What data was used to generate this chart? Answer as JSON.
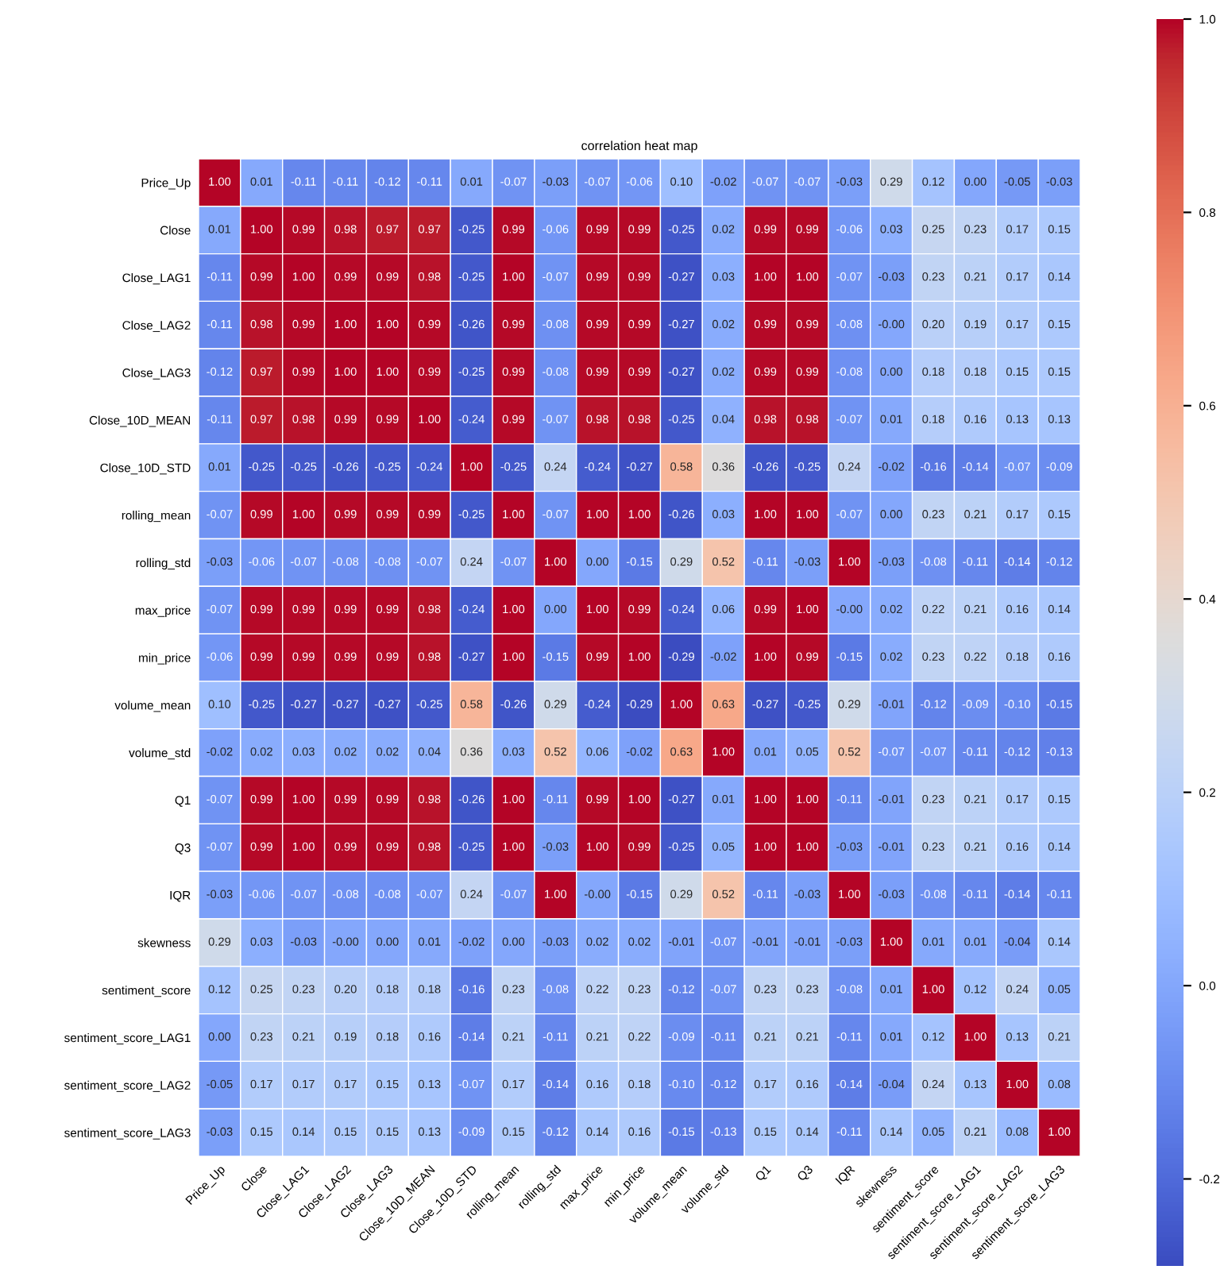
{
  "chart_data": {
    "type": "heatmap",
    "title": "correlation heat map",
    "categories": [
      "Price_Up",
      "Close",
      "Close_LAG1",
      "Close_LAG2",
      "Close_LAG3",
      "Close_10D_MEAN",
      "Close_10D_STD",
      "rolling_mean",
      "rolling_std",
      "max_price",
      "min_price",
      "volume_mean",
      "volume_std",
      "Q1",
      "Q3",
      "IQR",
      "skewness",
      "sentiment_score",
      "sentiment_score_LAG1",
      "sentiment_score_LAG2",
      "sentiment_score_LAG3"
    ],
    "y_categories": [
      "Price_Up",
      "Close",
      "Close_LAG1",
      "Close_LAG2",
      "Close_LAG3",
      "Close_10D_MEAN",
      "Close_10D_STD",
      "rolling_mean",
      "rolling_std",
      "max_price",
      "min_price",
      "volume_mean",
      "volume_std",
      "Q1",
      "Q3",
      "IQR",
      "skewness",
      "sentiment_score",
      "sentiment_score_LAG1",
      "sentiment_score_LAG2",
      "sentiment_score_LAG3"
    ],
    "cells": [
      [
        1.0,
        0.01,
        -0.11,
        -0.11,
        -0.12,
        -0.11,
        0.01,
        -0.07,
        -0.03,
        -0.07,
        -0.06,
        0.1,
        -0.02,
        -0.07,
        -0.07,
        -0.03,
        0.29,
        0.12,
        0.0,
        -0.05,
        -0.03
      ],
      [
        0.01,
        1.0,
        0.99,
        0.98,
        0.97,
        0.97,
        -0.25,
        0.99,
        -0.06,
        0.99,
        0.99,
        -0.25,
        0.02,
        0.99,
        0.99,
        -0.06,
        0.03,
        0.25,
        0.23,
        0.17,
        0.15
      ],
      [
        -0.11,
        0.99,
        1.0,
        0.99,
        0.99,
        0.98,
        -0.25,
        1.0,
        -0.07,
        0.99,
        0.99,
        -0.27,
        0.03,
        1.0,
        1.0,
        -0.07,
        -0.03,
        0.23,
        0.21,
        0.17,
        0.14
      ],
      [
        -0.11,
        0.98,
        0.99,
        1.0,
        1.0,
        0.99,
        -0.26,
        0.99,
        -0.08,
        0.99,
        0.99,
        -0.27,
        0.02,
        0.99,
        0.99,
        -0.08,
        -0.0,
        0.2,
        0.19,
        0.17,
        0.15
      ],
      [
        -0.12,
        0.97,
        0.99,
        1.0,
        1.0,
        0.99,
        -0.25,
        0.99,
        -0.08,
        0.99,
        0.99,
        -0.27,
        0.02,
        0.99,
        0.99,
        -0.08,
        0.0,
        0.18,
        0.18,
        0.15,
        0.15
      ],
      [
        -0.11,
        0.97,
        0.98,
        0.99,
        0.99,
        1.0,
        -0.24,
        0.99,
        -0.07,
        0.98,
        0.98,
        -0.25,
        0.04,
        0.98,
        0.98,
        -0.07,
        0.01,
        0.18,
        0.16,
        0.13,
        0.13
      ],
      [
        0.01,
        -0.25,
        -0.25,
        -0.26,
        -0.25,
        -0.24,
        1.0,
        -0.25,
        0.24,
        -0.24,
        -0.27,
        0.58,
        0.36,
        -0.26,
        -0.25,
        0.24,
        -0.02,
        -0.16,
        -0.14,
        -0.07,
        -0.09
      ],
      [
        -0.07,
        0.99,
        1.0,
        0.99,
        0.99,
        0.99,
        -0.25,
        1.0,
        -0.07,
        1.0,
        1.0,
        -0.26,
        0.03,
        1.0,
        1.0,
        -0.07,
        0.0,
        0.23,
        0.21,
        0.17,
        0.15
      ],
      [
        -0.03,
        -0.06,
        -0.07,
        -0.08,
        -0.08,
        -0.07,
        0.24,
        -0.07,
        1.0,
        0.0,
        -0.15,
        0.29,
        0.52,
        -0.11,
        -0.03,
        1.0,
        -0.03,
        -0.08,
        -0.11,
        -0.14,
        -0.12
      ],
      [
        -0.07,
        0.99,
        0.99,
        0.99,
        0.99,
        0.98,
        -0.24,
        1.0,
        0.0,
        1.0,
        0.99,
        -0.24,
        0.06,
        0.99,
        1.0,
        -0.0,
        0.02,
        0.22,
        0.21,
        0.16,
        0.14
      ],
      [
        -0.06,
        0.99,
        0.99,
        0.99,
        0.99,
        0.98,
        -0.27,
        1.0,
        -0.15,
        0.99,
        1.0,
        -0.29,
        -0.02,
        1.0,
        0.99,
        -0.15,
        0.02,
        0.23,
        0.22,
        0.18,
        0.16
      ],
      [
        0.1,
        -0.25,
        -0.27,
        -0.27,
        -0.27,
        -0.25,
        0.58,
        -0.26,
        0.29,
        -0.24,
        -0.29,
        1.0,
        0.63,
        -0.27,
        -0.25,
        0.29,
        -0.01,
        -0.12,
        -0.09,
        -0.1,
        -0.15
      ],
      [
        -0.02,
        0.02,
        0.03,
        0.02,
        0.02,
        0.04,
        0.36,
        0.03,
        0.52,
        0.06,
        -0.02,
        0.63,
        1.0,
        0.01,
        0.05,
        0.52,
        -0.07,
        -0.07,
        -0.11,
        -0.12,
        -0.13
      ],
      [
        -0.07,
        0.99,
        1.0,
        0.99,
        0.99,
        0.98,
        -0.26,
        1.0,
        -0.11,
        0.99,
        1.0,
        -0.27,
        0.01,
        1.0,
        1.0,
        -0.11,
        -0.01,
        0.23,
        0.21,
        0.17,
        0.15
      ],
      [
        -0.07,
        0.99,
        1.0,
        0.99,
        0.99,
        0.98,
        -0.25,
        1.0,
        -0.03,
        1.0,
        0.99,
        -0.25,
        0.05,
        1.0,
        1.0,
        -0.03,
        -0.01,
        0.23,
        0.21,
        0.16,
        0.14
      ],
      [
        -0.03,
        -0.06,
        -0.07,
        -0.08,
        -0.08,
        -0.07,
        0.24,
        -0.07,
        1.0,
        -0.0,
        -0.15,
        0.29,
        0.52,
        -0.11,
        -0.03,
        1.0,
        -0.03,
        -0.08,
        -0.11,
        -0.14,
        -0.11
      ],
      [
        0.29,
        0.03,
        -0.03,
        -0.0,
        0.0,
        0.01,
        -0.02,
        0.0,
        -0.03,
        0.02,
        0.02,
        -0.01,
        -0.07,
        -0.01,
        -0.01,
        -0.03,
        1.0,
        0.01,
        0.01,
        -0.04,
        0.14
      ],
      [
        0.12,
        0.25,
        0.23,
        0.2,
        0.18,
        0.18,
        -0.16,
        0.23,
        -0.08,
        0.22,
        0.23,
        -0.12,
        -0.07,
        0.23,
        0.23,
        -0.08,
        0.01,
        1.0,
        0.12,
        0.24,
        0.05
      ],
      [
        0.0,
        0.23,
        0.21,
        0.19,
        0.18,
        0.16,
        -0.14,
        0.21,
        -0.11,
        0.21,
        0.22,
        -0.09,
        -0.11,
        0.21,
        0.21,
        -0.11,
        0.01,
        0.12,
        1.0,
        0.13,
        0.21
      ],
      [
        -0.05,
        0.17,
        0.17,
        0.17,
        0.15,
        0.13,
        -0.07,
        0.17,
        -0.14,
        0.16,
        0.18,
        -0.1,
        -0.12,
        0.17,
        0.16,
        -0.14,
        -0.04,
        0.24,
        0.13,
        1.0,
        0.08
      ],
      [
        -0.03,
        0.15,
        0.14,
        0.15,
        0.15,
        0.13,
        -0.09,
        0.15,
        -0.12,
        0.14,
        0.16,
        -0.15,
        -0.13,
        0.15,
        0.14,
        -0.11,
        0.14,
        0.05,
        0.21,
        0.08,
        1.0
      ]
    ],
    "cell_labels": [
      [
        "1.00",
        "0.01",
        "-0.11",
        "-0.11",
        "-0.12",
        "-0.11",
        "0.01",
        "-0.07",
        "-0.03",
        "-0.07",
        "-0.06",
        "0.10",
        "-0.02",
        "-0.07",
        "-0.07",
        "-0.03",
        "0.29",
        "0.12",
        "0.00",
        "-0.05",
        "-0.03"
      ],
      [
        "0.01",
        "1.00",
        "0.99",
        "0.98",
        "0.97",
        "0.97",
        "-0.25",
        "0.99",
        "-0.06",
        "0.99",
        "0.99",
        "-0.25",
        "0.02",
        "0.99",
        "0.99",
        "-0.06",
        "0.03",
        "0.25",
        "0.23",
        "0.17",
        "0.15"
      ],
      [
        "-0.11",
        "0.99",
        "1.00",
        "0.99",
        "0.99",
        "0.98",
        "-0.25",
        "1.00",
        "-0.07",
        "0.99",
        "0.99",
        "-0.27",
        "0.03",
        "1.00",
        "1.00",
        "-0.07",
        "-0.03",
        "0.23",
        "0.21",
        "0.17",
        "0.14"
      ],
      [
        "-0.11",
        "0.98",
        "0.99",
        "1.00",
        "1.00",
        "0.99",
        "-0.26",
        "0.99",
        "-0.08",
        "0.99",
        "0.99",
        "-0.27",
        "0.02",
        "0.99",
        "0.99",
        "-0.08",
        "-0.00",
        "0.20",
        "0.19",
        "0.17",
        "0.15"
      ],
      [
        "-0.12",
        "0.97",
        "0.99",
        "1.00",
        "1.00",
        "0.99",
        "-0.25",
        "0.99",
        "-0.08",
        "0.99",
        "0.99",
        "-0.27",
        "0.02",
        "0.99",
        "0.99",
        "-0.08",
        "0.00",
        "0.18",
        "0.18",
        "0.15",
        "0.15"
      ],
      [
        "-0.11",
        "0.97",
        "0.98",
        "0.99",
        "0.99",
        "1.00",
        "-0.24",
        "0.99",
        "-0.07",
        "0.98",
        "0.98",
        "-0.25",
        "0.04",
        "0.98",
        "0.98",
        "-0.07",
        "0.01",
        "0.18",
        "0.16",
        "0.13",
        "0.13"
      ],
      [
        "0.01",
        "-0.25",
        "-0.25",
        "-0.26",
        "-0.25",
        "-0.24",
        "1.00",
        "-0.25",
        "0.24",
        "-0.24",
        "-0.27",
        "0.58",
        "0.36",
        "-0.26",
        "-0.25",
        "0.24",
        "-0.02",
        "-0.16",
        "-0.14",
        "-0.07",
        "-0.09"
      ],
      [
        "-0.07",
        "0.99",
        "1.00",
        "0.99",
        "0.99",
        "0.99",
        "-0.25",
        "1.00",
        "-0.07",
        "1.00",
        "1.00",
        "-0.26",
        "0.03",
        "1.00",
        "1.00",
        "-0.07",
        "0.00",
        "0.23",
        "0.21",
        "0.17",
        "0.15"
      ],
      [
        "-0.03",
        "-0.06",
        "-0.07",
        "-0.08",
        "-0.08",
        "-0.07",
        "0.24",
        "-0.07",
        "1.00",
        "0.00",
        "-0.15",
        "0.29",
        "0.52",
        "-0.11",
        "-0.03",
        "1.00",
        "-0.03",
        "-0.08",
        "-0.11",
        "-0.14",
        "-0.12"
      ],
      [
        "-0.07",
        "0.99",
        "0.99",
        "0.99",
        "0.99",
        "0.98",
        "-0.24",
        "1.00",
        "0.00",
        "1.00",
        "0.99",
        "-0.24",
        "0.06",
        "0.99",
        "1.00",
        "-0.00",
        "0.02",
        "0.22",
        "0.21",
        "0.16",
        "0.14"
      ],
      [
        "-0.06",
        "0.99",
        "0.99",
        "0.99",
        "0.99",
        "0.98",
        "-0.27",
        "1.00",
        "-0.15",
        "0.99",
        "1.00",
        "-0.29",
        "-0.02",
        "1.00",
        "0.99",
        "-0.15",
        "0.02",
        "0.23",
        "0.22",
        "0.18",
        "0.16"
      ],
      [
        "0.10",
        "-0.25",
        "-0.27",
        "-0.27",
        "-0.27",
        "-0.25",
        "0.58",
        "-0.26",
        "0.29",
        "-0.24",
        "-0.29",
        "1.00",
        "0.63",
        "-0.27",
        "-0.25",
        "0.29",
        "-0.01",
        "-0.12",
        "-0.09",
        "-0.10",
        "-0.15"
      ],
      [
        "-0.02",
        "0.02",
        "0.03",
        "0.02",
        "0.02",
        "0.04",
        "0.36",
        "0.03",
        "0.52",
        "0.06",
        "-0.02",
        "0.63",
        "1.00",
        "0.01",
        "0.05",
        "0.52",
        "-0.07",
        "-0.07",
        "-0.11",
        "-0.12",
        "-0.13"
      ],
      [
        "-0.07",
        "0.99",
        "1.00",
        "0.99",
        "0.99",
        "0.98",
        "-0.26",
        "1.00",
        "-0.11",
        "0.99",
        "1.00",
        "-0.27",
        "0.01",
        "1.00",
        "1.00",
        "-0.11",
        "-0.01",
        "0.23",
        "0.21",
        "0.17",
        "0.15"
      ],
      [
        "-0.07",
        "0.99",
        "1.00",
        "0.99",
        "0.99",
        "0.98",
        "-0.25",
        "1.00",
        "-0.03",
        "1.00",
        "0.99",
        "-0.25",
        "0.05",
        "1.00",
        "1.00",
        "-0.03",
        "-0.01",
        "0.23",
        "0.21",
        "0.16",
        "0.14"
      ],
      [
        "-0.03",
        "-0.06",
        "-0.07",
        "-0.08",
        "-0.08",
        "-0.07",
        "0.24",
        "-0.07",
        "1.00",
        "-0.00",
        "-0.15",
        "0.29",
        "0.52",
        "-0.11",
        "-0.03",
        "1.00",
        "-0.03",
        "-0.08",
        "-0.11",
        "-0.14",
        "-0.11"
      ],
      [
        "0.29",
        "0.03",
        "-0.03",
        "-0.00",
        "0.00",
        "0.01",
        "-0.02",
        "0.00",
        "-0.03",
        "0.02",
        "0.02",
        "-0.01",
        "-0.07",
        "-0.01",
        "-0.01",
        "-0.03",
        "1.00",
        "0.01",
        "0.01",
        "-0.04",
        "0.14"
      ],
      [
        "0.12",
        "0.25",
        "0.23",
        "0.20",
        "0.18",
        "0.18",
        "-0.16",
        "0.23",
        "-0.08",
        "0.22",
        "0.23",
        "-0.12",
        "-0.07",
        "0.23",
        "0.23",
        "-0.08",
        "0.01",
        "1.00",
        "0.12",
        "0.24",
        "0.05"
      ],
      [
        "0.00",
        "0.23",
        "0.21",
        "0.19",
        "0.18",
        "0.16",
        "-0.14",
        "0.21",
        "-0.11",
        "0.21",
        "0.22",
        "-0.09",
        "-0.11",
        "0.21",
        "0.21",
        "-0.11",
        "0.01",
        "0.12",
        "1.00",
        "0.13",
        "0.21"
      ],
      [
        "-0.05",
        "0.17",
        "0.17",
        "0.17",
        "0.15",
        "0.13",
        "-0.07",
        "0.17",
        "-0.14",
        "0.16",
        "0.18",
        "-0.10",
        "-0.12",
        "0.17",
        "0.16",
        "-0.14",
        "-0.04",
        "0.24",
        "0.13",
        "1.00",
        "0.08"
      ],
      [
        "-0.03",
        "0.15",
        "0.14",
        "0.15",
        "0.15",
        "0.13",
        "-0.09",
        "0.15",
        "-0.12",
        "0.14",
        "0.16",
        "-0.15",
        "-0.13",
        "0.15",
        "0.14",
        "-0.11",
        "0.14",
        "0.05",
        "0.21",
        "0.08",
        "1.00"
      ]
    ],
    "clim": [
      -0.29,
      1.0
    ],
    "cticks": [
      {
        "value": -0.2,
        "label": "-0.2"
      },
      {
        "value": 0.0,
        "label": "0.0"
      },
      {
        "value": 0.2,
        "label": "0.2"
      },
      {
        "value": 0.4,
        "label": "0.4"
      },
      {
        "value": 0.6,
        "label": "0.6"
      },
      {
        "value": 0.8,
        "label": "0.8"
      },
      {
        "value": 1.0,
        "label": "1.0"
      }
    ],
    "data_labels": true
  }
}
